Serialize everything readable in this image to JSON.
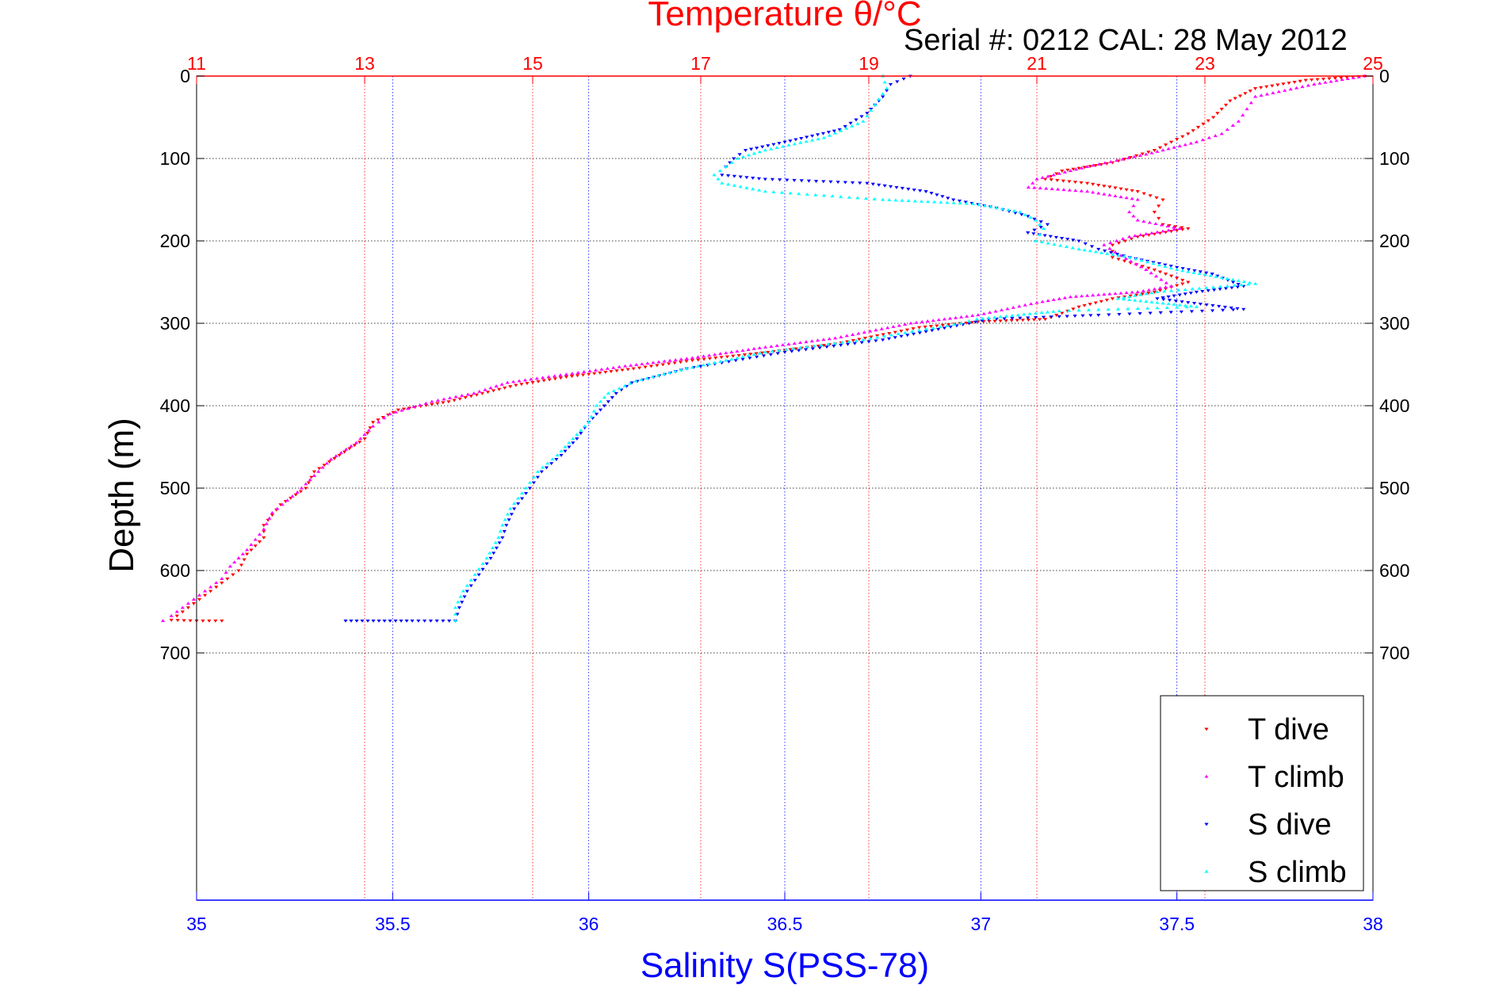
{
  "chart_data": {
    "type": "scatter",
    "title": "Temperature θ/°C",
    "subtitle": "Serial #: 0212  CAL: 28 May 2012",
    "xlabel": "Salinity S(PSS-78)",
    "ylabel": "Depth (m)",
    "temperature_axis": {
      "range": [
        11,
        25
      ],
      "ticks": [
        "11",
        "13",
        "15",
        "17",
        "19",
        "21",
        "23",
        "25"
      ]
    },
    "salinity_axis": {
      "range": [
        35,
        38
      ],
      "ticks": [
        "35",
        "35.5",
        "36",
        "36.5",
        "37",
        "37.5",
        "38"
      ]
    },
    "depth_axis": {
      "range": [
        0,
        1000
      ],
      "reversed": true,
      "ticks": [
        "0",
        "100",
        "200",
        "300",
        "400",
        "500",
        "600",
        "700"
      ]
    },
    "grid": true,
    "legend_position": "bottom-right",
    "colors": {
      "temperature": "#ff0000",
      "salinity": "#0000ff",
      "depth": "#000000"
    },
    "series": [
      {
        "name": "T dive",
        "axis": "temperature",
        "color": "#ff0000",
        "marker": "down-triangle",
        "points": [
          [
            24.9,
            0
          ],
          [
            24.2,
            5
          ],
          [
            23.6,
            15
          ],
          [
            23.3,
            30
          ],
          [
            23.1,
            50
          ],
          [
            22.8,
            70
          ],
          [
            22.4,
            90
          ],
          [
            21.9,
            105
          ],
          [
            21.3,
            115
          ],
          [
            21.1,
            125
          ],
          [
            21.6,
            130
          ],
          [
            22.2,
            140
          ],
          [
            22.5,
            150
          ],
          [
            22.4,
            165
          ],
          [
            22.5,
            180
          ],
          [
            22.8,
            185
          ],
          [
            22.2,
            195
          ],
          [
            21.9,
            205
          ],
          [
            21.9,
            220
          ],
          [
            22.4,
            235
          ],
          [
            22.8,
            250
          ],
          [
            22.4,
            262
          ],
          [
            21.9,
            270
          ],
          [
            21.5,
            280
          ],
          [
            21.1,
            295
          ],
          [
            20.3,
            298
          ],
          [
            19.6,
            305
          ],
          [
            18.6,
            325
          ],
          [
            17.8,
            335
          ],
          [
            16.9,
            345
          ],
          [
            16.2,
            355
          ],
          [
            15.4,
            365
          ],
          [
            14.8,
            375
          ],
          [
            14.4,
            385
          ],
          [
            14.0,
            395
          ],
          [
            13.4,
            405
          ],
          [
            13.1,
            420
          ],
          [
            13.0,
            440
          ],
          [
            12.7,
            460
          ],
          [
            12.4,
            480
          ],
          [
            12.3,
            500
          ],
          [
            12.0,
            520
          ],
          [
            11.8,
            545
          ],
          [
            11.8,
            560
          ],
          [
            11.6,
            580
          ],
          [
            11.5,
            600
          ],
          [
            11.3,
            615
          ],
          [
            11.1,
            630
          ],
          [
            10.9,
            645
          ],
          [
            10.7,
            660
          ],
          [
            11.0,
            661
          ],
          [
            11.3,
            661
          ]
        ]
      },
      {
        "name": "T climb",
        "axis": "temperature",
        "color": "#ff00ff",
        "marker": "up-triangle",
        "points": [
          [
            24.9,
            0
          ],
          [
            24.3,
            10
          ],
          [
            23.6,
            25
          ],
          [
            23.5,
            40
          ],
          [
            23.4,
            55
          ],
          [
            23.2,
            70
          ],
          [
            22.9,
            80
          ],
          [
            22.3,
            95
          ],
          [
            21.6,
            110
          ],
          [
            21.0,
            125
          ],
          [
            20.9,
            135
          ],
          [
            21.6,
            140
          ],
          [
            22.2,
            150
          ],
          [
            22.1,
            165
          ],
          [
            22.2,
            175
          ],
          [
            22.7,
            185
          ],
          [
            22.1,
            195
          ],
          [
            21.8,
            205
          ],
          [
            22.0,
            218
          ],
          [
            22.3,
            235
          ],
          [
            22.6,
            255
          ],
          [
            22.2,
            262
          ],
          [
            21.4,
            268
          ],
          [
            21.0,
            275
          ],
          [
            20.3,
            290
          ],
          [
            19.5,
            300
          ],
          [
            18.6,
            318
          ],
          [
            17.7,
            330
          ],
          [
            16.9,
            342
          ],
          [
            16.1,
            352
          ],
          [
            15.4,
            362
          ],
          [
            14.7,
            372
          ],
          [
            14.3,
            385
          ],
          [
            13.8,
            395
          ],
          [
            13.3,
            410
          ],
          [
            13.1,
            425
          ],
          [
            12.9,
            445
          ],
          [
            12.6,
            465
          ],
          [
            12.4,
            485
          ],
          [
            12.2,
            505
          ],
          [
            11.9,
            530
          ],
          [
            11.8,
            550
          ],
          [
            11.6,
            575
          ],
          [
            11.4,
            595
          ],
          [
            11.3,
            610
          ],
          [
            11.1,
            625
          ],
          [
            10.9,
            640
          ],
          [
            10.7,
            655
          ],
          [
            10.6,
            661
          ]
        ]
      },
      {
        "name": "S dive",
        "axis": "salinity",
        "color": "#0000ff",
        "marker": "down-triangle",
        "points": [
          [
            36.82,
            0
          ],
          [
            36.77,
            10
          ],
          [
            36.75,
            25
          ],
          [
            36.71,
            45
          ],
          [
            36.64,
            65
          ],
          [
            36.5,
            80
          ],
          [
            36.4,
            90
          ],
          [
            36.37,
            100
          ],
          [
            36.35,
            110
          ],
          [
            36.34,
            120
          ],
          [
            36.45,
            125
          ],
          [
            36.71,
            130
          ],
          [
            36.86,
            140
          ],
          [
            36.93,
            150
          ],
          [
            37.04,
            160
          ],
          [
            37.12,
            170
          ],
          [
            37.17,
            180
          ],
          [
            37.12,
            190
          ],
          [
            37.25,
            200
          ],
          [
            37.3,
            210
          ],
          [
            37.38,
            220
          ],
          [
            37.5,
            232
          ],
          [
            37.59,
            240
          ],
          [
            37.67,
            255
          ],
          [
            37.55,
            262
          ],
          [
            37.45,
            270
          ],
          [
            37.67,
            283
          ],
          [
            37.3,
            290
          ],
          [
            37.02,
            295
          ],
          [
            36.97,
            300
          ],
          [
            36.75,
            320
          ],
          [
            36.5,
            335
          ],
          [
            36.25,
            355
          ],
          [
            36.11,
            372
          ],
          [
            36.07,
            385
          ],
          [
            36.04,
            400
          ],
          [
            36.0,
            420
          ],
          [
            35.97,
            440
          ],
          [
            35.93,
            460
          ],
          [
            35.88,
            480
          ],
          [
            35.85,
            500
          ],
          [
            35.81,
            525
          ],
          [
            35.79,
            545
          ],
          [
            35.78,
            560
          ],
          [
            35.75,
            585
          ],
          [
            35.72,
            605
          ],
          [
            35.69,
            625
          ],
          [
            35.67,
            645
          ],
          [
            35.66,
            661
          ],
          [
            35.55,
            661
          ],
          [
            35.38,
            661
          ]
        ]
      },
      {
        "name": "S climb",
        "axis": "salinity",
        "color": "#00ffff",
        "marker": "up-triangle",
        "points": [
          [
            36.75,
            0
          ],
          [
            36.76,
            15
          ],
          [
            36.73,
            35
          ],
          [
            36.7,
            55
          ],
          [
            36.6,
            75
          ],
          [
            36.45,
            90
          ],
          [
            36.38,
            100
          ],
          [
            36.35,
            110
          ],
          [
            36.32,
            120
          ],
          [
            36.34,
            130
          ],
          [
            36.45,
            140
          ],
          [
            36.75,
            150
          ],
          [
            36.98,
            155
          ],
          [
            37.1,
            165
          ],
          [
            37.14,
            175
          ],
          [
            37.16,
            185
          ],
          [
            37.14,
            200
          ],
          [
            37.25,
            210
          ],
          [
            37.38,
            220
          ],
          [
            37.5,
            235
          ],
          [
            37.7,
            252
          ],
          [
            37.45,
            262
          ],
          [
            37.35,
            270
          ],
          [
            37.55,
            280
          ],
          [
            37.2,
            285
          ],
          [
            36.99,
            295
          ],
          [
            36.95,
            300
          ],
          [
            36.7,
            320
          ],
          [
            36.45,
            335
          ],
          [
            36.25,
            355
          ],
          [
            36.12,
            370
          ],
          [
            36.05,
            385
          ],
          [
            36.02,
            400
          ],
          [
            36.0,
            420
          ],
          [
            35.96,
            440
          ],
          [
            35.92,
            460
          ],
          [
            35.87,
            480
          ],
          [
            35.84,
            500
          ],
          [
            35.8,
            525
          ],
          [
            35.78,
            545
          ],
          [
            35.77,
            560
          ],
          [
            35.74,
            585
          ],
          [
            35.71,
            605
          ],
          [
            35.68,
            625
          ],
          [
            35.66,
            645
          ],
          [
            35.66,
            661
          ]
        ]
      }
    ]
  }
}
